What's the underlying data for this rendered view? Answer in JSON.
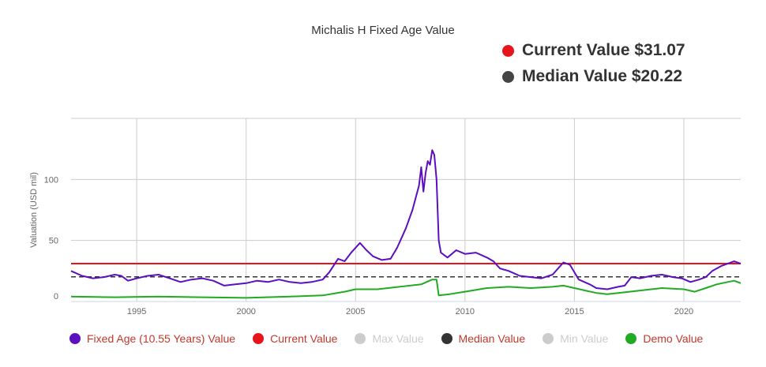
{
  "title": "Michalis H Fixed Age Value",
  "headline": {
    "current_label": "Current Value $31.07",
    "median_label": "Median Value $20.22"
  },
  "colors": {
    "fixed_age": "#5b0fbf",
    "current": "#e8141b",
    "median": "#333333",
    "demo": "#22aa22",
    "inactive": "#cccccc",
    "grid": "#cccccc"
  },
  "legend": [
    {
      "label": "Fixed Age (10.55 Years) Value",
      "color": "#5b0fbf",
      "active": true
    },
    {
      "label": "Current Value",
      "color": "#e8141b",
      "active": true
    },
    {
      "label": "Max Value",
      "color": "#cccccc",
      "active": false
    },
    {
      "label": "Median Value",
      "color": "#333333",
      "active": true
    },
    {
      "label": "Min Value",
      "color": "#cccccc",
      "active": false
    },
    {
      "label": "Demo Value",
      "color": "#22aa22",
      "active": true
    }
  ],
  "chart_data": {
    "type": "line",
    "title": "Michalis H Fixed Age Value",
    "ylabel": "Valuation (USD mil)",
    "xlabel": "",
    "xlim": [
      1992.0,
      2022.6
    ],
    "ylim": [
      0,
      150
    ],
    "x_ticks": [
      "1995",
      "2000",
      "2005",
      "2010",
      "2015",
      "2020"
    ],
    "y_ticks": [
      "0",
      "50",
      "100"
    ],
    "grid": true,
    "legend_position": "bottom",
    "current_value": 31.07,
    "median_value": 20.22,
    "series": [
      {
        "name": "Fixed Age (10.55 Years) Value",
        "points": [
          [
            1992.0,
            25
          ],
          [
            1992.5,
            21
          ],
          [
            1993.0,
            19
          ],
          [
            1993.5,
            20
          ],
          [
            1994.0,
            22
          ],
          [
            1994.3,
            21
          ],
          [
            1994.6,
            17
          ],
          [
            1995.0,
            19
          ],
          [
            1995.5,
            21
          ],
          [
            1996.0,
            22
          ],
          [
            1996.5,
            19
          ],
          [
            1997.0,
            16
          ],
          [
            1997.5,
            18
          ],
          [
            1998.0,
            19
          ],
          [
            1998.5,
            17
          ],
          [
            1999.0,
            13
          ],
          [
            1999.5,
            14
          ],
          [
            2000.0,
            15
          ],
          [
            2000.5,
            17
          ],
          [
            2001.0,
            16
          ],
          [
            2001.5,
            18
          ],
          [
            2002.0,
            16
          ],
          [
            2002.5,
            15
          ],
          [
            2003.0,
            16
          ],
          [
            2003.5,
            18
          ],
          [
            2003.8,
            24
          ],
          [
            2004.2,
            35
          ],
          [
            2004.5,
            33
          ],
          [
            2004.8,
            40
          ],
          [
            2005.2,
            48
          ],
          [
            2005.5,
            42
          ],
          [
            2005.8,
            37
          ],
          [
            2006.2,
            34
          ],
          [
            2006.6,
            35
          ],
          [
            2006.9,
            44
          ],
          [
            2007.3,
            60
          ],
          [
            2007.6,
            75
          ],
          [
            2007.9,
            95
          ],
          [
            2008.0,
            110
          ],
          [
            2008.1,
            90
          ],
          [
            2008.2,
            105
          ],
          [
            2008.3,
            115
          ],
          [
            2008.4,
            112
          ],
          [
            2008.5,
            124
          ],
          [
            2008.6,
            120
          ],
          [
            2008.7,
            100
          ],
          [
            2008.8,
            50
          ],
          [
            2008.9,
            40
          ],
          [
            2009.2,
            36
          ],
          [
            2009.6,
            42
          ],
          [
            2010.0,
            39
          ],
          [
            2010.5,
            40
          ],
          [
            2011.0,
            36
          ],
          [
            2011.3,
            33
          ],
          [
            2011.6,
            27
          ],
          [
            2012.0,
            25
          ],
          [
            2012.5,
            21
          ],
          [
            2013.0,
            20
          ],
          [
            2013.5,
            19
          ],
          [
            2014.0,
            22
          ],
          [
            2014.3,
            28
          ],
          [
            2014.5,
            32
          ],
          [
            2014.8,
            30
          ],
          [
            2015.2,
            18
          ],
          [
            2015.7,
            14
          ],
          [
            2016.0,
            11
          ],
          [
            2016.5,
            10
          ],
          [
            2017.0,
            12
          ],
          [
            2017.3,
            13
          ],
          [
            2017.6,
            20
          ],
          [
            2018.0,
            19
          ],
          [
            2018.5,
            21
          ],
          [
            2019.0,
            22
          ],
          [
            2019.5,
            20
          ],
          [
            2019.9,
            19
          ],
          [
            2020.3,
            16
          ],
          [
            2020.7,
            18
          ],
          [
            2021.0,
            20
          ],
          [
            2021.3,
            25
          ],
          [
            2021.7,
            29
          ],
          [
            2022.0,
            31
          ],
          [
            2022.3,
            33
          ],
          [
            2022.6,
            31
          ]
        ]
      },
      {
        "name": "Demo Value",
        "points": [
          [
            1992.0,
            4
          ],
          [
            1994.0,
            3.5
          ],
          [
            1996.0,
            4
          ],
          [
            1998.0,
            3.5
          ],
          [
            2000.0,
            3
          ],
          [
            2002.0,
            4
          ],
          [
            2003.5,
            5
          ],
          [
            2004.5,
            8
          ],
          [
            2005.0,
            10
          ],
          [
            2006.0,
            10
          ],
          [
            2007.0,
            12
          ],
          [
            2008.0,
            14
          ],
          [
            2008.5,
            18
          ],
          [
            2008.7,
            18
          ],
          [
            2008.8,
            5
          ],
          [
            2009.3,
            6
          ],
          [
            2010.0,
            8
          ],
          [
            2011.0,
            11
          ],
          [
            2012.0,
            12
          ],
          [
            2013.0,
            11
          ],
          [
            2014.0,
            12
          ],
          [
            2014.5,
            13
          ],
          [
            2015.0,
            11
          ],
          [
            2015.5,
            9
          ],
          [
            2016.0,
            7
          ],
          [
            2016.5,
            6
          ],
          [
            2017.0,
            7
          ],
          [
            2018.0,
            9
          ],
          [
            2019.0,
            11
          ],
          [
            2020.0,
            10
          ],
          [
            2020.5,
            8
          ],
          [
            2021.0,
            11
          ],
          [
            2021.5,
            14
          ],
          [
            2022.0,
            16
          ],
          [
            2022.3,
            17
          ],
          [
            2022.6,
            15
          ]
        ]
      }
    ]
  }
}
